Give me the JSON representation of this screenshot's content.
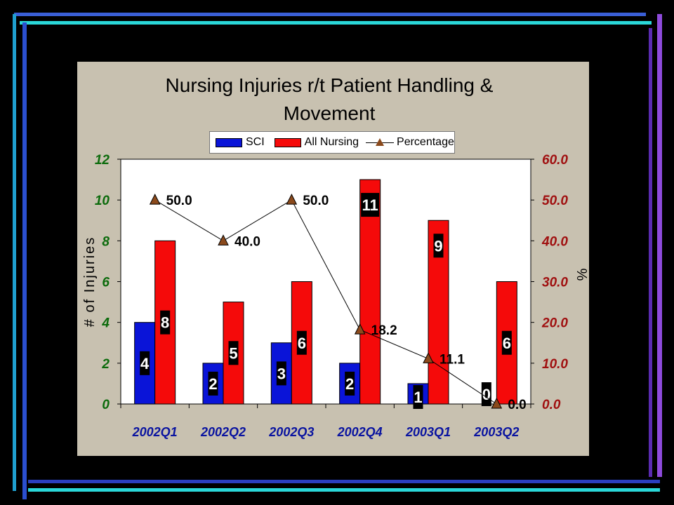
{
  "chart_data": {
    "type": "bar",
    "title_lines": [
      "Nursing Injuries r/t Patient Handling &",
      "Movement"
    ],
    "categories": [
      "2002Q1",
      "2002Q2",
      "2002Q3",
      "2002Q4",
      "2003Q1",
      "2003Q2"
    ],
    "series": [
      {
        "name": "SCI",
        "type": "bar",
        "axis": "left",
        "color": "#0a14d8",
        "values": [
          4,
          2,
          3,
          2,
          1,
          0
        ],
        "labels": [
          "4",
          "2",
          "3",
          "2",
          "1",
          "0"
        ]
      },
      {
        "name": "All Nursing",
        "type": "bar",
        "axis": "left",
        "color": "#f50a0a",
        "values": [
          8,
          5,
          6,
          11,
          9,
          6
        ],
        "labels": [
          "8",
          "5",
          "6",
          "11",
          "9",
          "6"
        ]
      },
      {
        "name": "Percentage",
        "type": "line",
        "axis": "right",
        "color": "#8b4a1c",
        "values": [
          50.0,
          40.0,
          50.0,
          18.2,
          11.1,
          0.0
        ],
        "labels": [
          "50.0",
          "40.0",
          "50.0",
          "18.2",
          "11.1",
          "0.0"
        ]
      }
    ],
    "ylabel": "# of Injuries",
    "ylabel_right": "%",
    "ylim": [
      0,
      12
    ],
    "ylim_right": [
      0,
      60
    ],
    "yticks": [
      "0",
      "2",
      "4",
      "6",
      "8",
      "10",
      "12"
    ],
    "yticks_right": [
      "0.0",
      "10.0",
      "20.0",
      "30.0",
      "40.0",
      "50.0",
      "60.0"
    ],
    "legend_position": "top",
    "grid": false
  },
  "colors": {
    "background": "#000000",
    "panel": "#c8c1b0",
    "plot_area": "#ffffff",
    "left_axis_text": "#0c6b0c",
    "right_axis_text": "#a01010",
    "category_text": "#0a14a0"
  }
}
